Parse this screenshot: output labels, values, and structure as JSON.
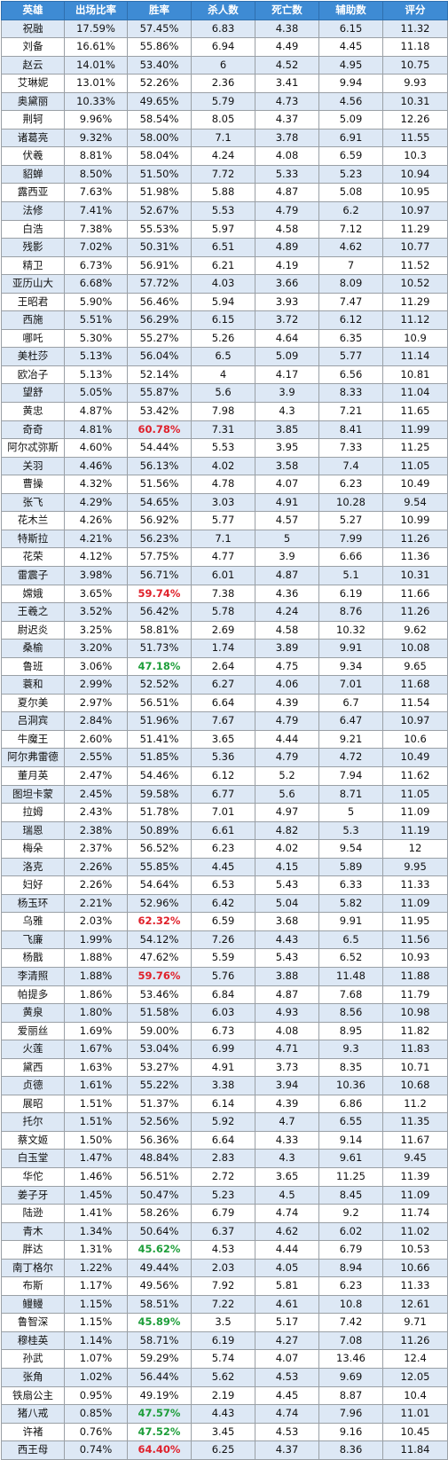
{
  "headers": [
    "英雄",
    "出场比率",
    "胜率",
    "杀人数",
    "死亡数",
    "辅助数",
    "评分"
  ],
  "colors": {
    "header_bg": "#3e8bd4",
    "band": "#dde8f5",
    "high_win": "#e0202a",
    "low_win": "#1e9e3a"
  },
  "rows": [
    {
      "hero": "祝融",
      "pick": "17.59%",
      "win": "57.45%",
      "kills": "6.83",
      "deaths": "4.38",
      "assists": "6.15",
      "score": "11.32",
      "flag": ""
    },
    {
      "hero": "刘备",
      "pick": "16.61%",
      "win": "55.86%",
      "kills": "6.94",
      "deaths": "4.49",
      "assists": "4.45",
      "score": "11.18",
      "flag": ""
    },
    {
      "hero": "赵云",
      "pick": "14.01%",
      "win": "53.40%",
      "kills": "6",
      "deaths": "4.52",
      "assists": "4.95",
      "score": "10.75",
      "flag": ""
    },
    {
      "hero": "艾琳妮",
      "pick": "13.01%",
      "win": "52.26%",
      "kills": "2.36",
      "deaths": "3.41",
      "assists": "9.94",
      "score": "9.93",
      "flag": ""
    },
    {
      "hero": "奥黛丽",
      "pick": "10.33%",
      "win": "49.65%",
      "kills": "5.79",
      "deaths": "4.73",
      "assists": "4.56",
      "score": "10.31",
      "flag": ""
    },
    {
      "hero": "荆轲",
      "pick": "9.96%",
      "win": "58.54%",
      "kills": "8.05",
      "deaths": "4.37",
      "assists": "5.09",
      "score": "12.26",
      "flag": ""
    },
    {
      "hero": "诸葛亮",
      "pick": "9.32%",
      "win": "58.00%",
      "kills": "7.1",
      "deaths": "3.78",
      "assists": "6.91",
      "score": "11.55",
      "flag": ""
    },
    {
      "hero": "伏羲",
      "pick": "8.81%",
      "win": "58.04%",
      "kills": "4.24",
      "deaths": "4.08",
      "assists": "6.59",
      "score": "10.3",
      "flag": ""
    },
    {
      "hero": "貂蝉",
      "pick": "8.50%",
      "win": "51.50%",
      "kills": "7.72",
      "deaths": "5.33",
      "assists": "5.23",
      "score": "10.94",
      "flag": ""
    },
    {
      "hero": "露西亚",
      "pick": "7.63%",
      "win": "51.98%",
      "kills": "5.88",
      "deaths": "4.87",
      "assists": "5.08",
      "score": "10.95",
      "flag": ""
    },
    {
      "hero": "法修",
      "pick": "7.41%",
      "win": "52.67%",
      "kills": "5.53",
      "deaths": "4.79",
      "assists": "6.2",
      "score": "10.97",
      "flag": ""
    },
    {
      "hero": "白浩",
      "pick": "7.38%",
      "win": "55.53%",
      "kills": "5.97",
      "deaths": "4.58",
      "assists": "7.12",
      "score": "11.29",
      "flag": ""
    },
    {
      "hero": "残影",
      "pick": "7.02%",
      "win": "50.31%",
      "kills": "6.51",
      "deaths": "4.89",
      "assists": "4.62",
      "score": "10.77",
      "flag": ""
    },
    {
      "hero": "精卫",
      "pick": "6.73%",
      "win": "56.91%",
      "kills": "6.21",
      "deaths": "4.19",
      "assists": "7",
      "score": "11.52",
      "flag": ""
    },
    {
      "hero": "亚历山大",
      "pick": "6.68%",
      "win": "57.72%",
      "kills": "4.03",
      "deaths": "3.66",
      "assists": "8.09",
      "score": "10.52",
      "flag": ""
    },
    {
      "hero": "王昭君",
      "pick": "5.90%",
      "win": "56.46%",
      "kills": "5.94",
      "deaths": "3.93",
      "assists": "7.47",
      "score": "11.29",
      "flag": ""
    },
    {
      "hero": "西施",
      "pick": "5.51%",
      "win": "56.29%",
      "kills": "6.15",
      "deaths": "3.72",
      "assists": "6.12",
      "score": "11.12",
      "flag": ""
    },
    {
      "hero": "哪吒",
      "pick": "5.30%",
      "win": "55.27%",
      "kills": "5.26",
      "deaths": "4.64",
      "assists": "6.35",
      "score": "10.9",
      "flag": ""
    },
    {
      "hero": "美杜莎",
      "pick": "5.13%",
      "win": "56.04%",
      "kills": "6.5",
      "deaths": "5.09",
      "assists": "5.77",
      "score": "11.14",
      "flag": ""
    },
    {
      "hero": "欧冶子",
      "pick": "5.13%",
      "win": "52.14%",
      "kills": "4",
      "deaths": "4.17",
      "assists": "6.56",
      "score": "10.81",
      "flag": ""
    },
    {
      "hero": "望舒",
      "pick": "5.05%",
      "win": "55.87%",
      "kills": "5.6",
      "deaths": "3.9",
      "assists": "8.33",
      "score": "11.04",
      "flag": ""
    },
    {
      "hero": "黄忠",
      "pick": "4.87%",
      "win": "53.42%",
      "kills": "7.98",
      "deaths": "4.3",
      "assists": "7.21",
      "score": "11.65",
      "flag": ""
    },
    {
      "hero": "奇奇",
      "pick": "4.81%",
      "win": "60.78%",
      "kills": "7.31",
      "deaths": "3.85",
      "assists": "8.41",
      "score": "11.99",
      "flag": "red"
    },
    {
      "hero": "阿尔忒弥斯",
      "pick": "4.60%",
      "win": "54.44%",
      "kills": "5.53",
      "deaths": "3.95",
      "assists": "7.33",
      "score": "11.25",
      "flag": ""
    },
    {
      "hero": "关羽",
      "pick": "4.46%",
      "win": "56.13%",
      "kills": "4.02",
      "deaths": "3.58",
      "assists": "7.4",
      "score": "11.05",
      "flag": ""
    },
    {
      "hero": "曹操",
      "pick": "4.32%",
      "win": "51.56%",
      "kills": "4.78",
      "deaths": "4.07",
      "assists": "6.23",
      "score": "10.49",
      "flag": ""
    },
    {
      "hero": "张飞",
      "pick": "4.29%",
      "win": "54.65%",
      "kills": "3.03",
      "deaths": "4.91",
      "assists": "10.28",
      "score": "9.54",
      "flag": ""
    },
    {
      "hero": "花木兰",
      "pick": "4.26%",
      "win": "56.92%",
      "kills": "5.77",
      "deaths": "4.57",
      "assists": "5.27",
      "score": "10.99",
      "flag": ""
    },
    {
      "hero": "特斯拉",
      "pick": "4.21%",
      "win": "56.23%",
      "kills": "7.1",
      "deaths": "5",
      "assists": "7.99",
      "score": "11.26",
      "flag": ""
    },
    {
      "hero": "花荣",
      "pick": "4.12%",
      "win": "57.75%",
      "kills": "4.77",
      "deaths": "3.9",
      "assists": "6.66",
      "score": "11.36",
      "flag": ""
    },
    {
      "hero": "雷震子",
      "pick": "3.98%",
      "win": "56.71%",
      "kills": "6.01",
      "deaths": "4.87",
      "assists": "5.1",
      "score": "10.31",
      "flag": ""
    },
    {
      "hero": "嫦娥",
      "pick": "3.65%",
      "win": "59.74%",
      "kills": "7.38",
      "deaths": "4.36",
      "assists": "6.19",
      "score": "11.66",
      "flag": "red"
    },
    {
      "hero": "王羲之",
      "pick": "3.52%",
      "win": "56.42%",
      "kills": "5.78",
      "deaths": "4.24",
      "assists": "8.76",
      "score": "11.26",
      "flag": ""
    },
    {
      "hero": "尉迟炎",
      "pick": "3.25%",
      "win": "58.81%",
      "kills": "2.69",
      "deaths": "4.58",
      "assists": "10.32",
      "score": "9.62",
      "flag": ""
    },
    {
      "hero": "桑榆",
      "pick": "3.20%",
      "win": "51.73%",
      "kills": "1.74",
      "deaths": "3.89",
      "assists": "9.91",
      "score": "10.08",
      "flag": ""
    },
    {
      "hero": "鲁班",
      "pick": "3.06%",
      "win": "47.18%",
      "kills": "2.64",
      "deaths": "4.75",
      "assists": "9.34",
      "score": "9.65",
      "flag": "green"
    },
    {
      "hero": "蓑和",
      "pick": "2.99%",
      "win": "52.52%",
      "kills": "6.27",
      "deaths": "4.06",
      "assists": "7.01",
      "score": "11.68",
      "flag": ""
    },
    {
      "hero": "夏尔美",
      "pick": "2.97%",
      "win": "56.51%",
      "kills": "6.64",
      "deaths": "4.39",
      "assists": "6.7",
      "score": "11.54",
      "flag": ""
    },
    {
      "hero": "吕洞宾",
      "pick": "2.84%",
      "win": "51.96%",
      "kills": "7.67",
      "deaths": "4.79",
      "assists": "6.47",
      "score": "10.97",
      "flag": ""
    },
    {
      "hero": "牛魔王",
      "pick": "2.60%",
      "win": "51.41%",
      "kills": "3.65",
      "deaths": "4.44",
      "assists": "9.21",
      "score": "10.6",
      "flag": ""
    },
    {
      "hero": "阿尔弗雷德",
      "pick": "2.55%",
      "win": "51.85%",
      "kills": "5.36",
      "deaths": "4.79",
      "assists": "4.72",
      "score": "10.49",
      "flag": ""
    },
    {
      "hero": "董月英",
      "pick": "2.47%",
      "win": "54.46%",
      "kills": "6.12",
      "deaths": "5.2",
      "assists": "7.94",
      "score": "11.62",
      "flag": ""
    },
    {
      "hero": "图坦卡蒙",
      "pick": "2.45%",
      "win": "59.58%",
      "kills": "6.77",
      "deaths": "5.6",
      "assists": "8.71",
      "score": "11.05",
      "flag": ""
    },
    {
      "hero": "拉姆",
      "pick": "2.43%",
      "win": "51.78%",
      "kills": "7.01",
      "deaths": "4.97",
      "assists": "5",
      "score": "11.09",
      "flag": ""
    },
    {
      "hero": "瑞恩",
      "pick": "2.38%",
      "win": "50.89%",
      "kills": "6.61",
      "deaths": "4.82",
      "assists": "5.3",
      "score": "11.19",
      "flag": ""
    },
    {
      "hero": "梅朵",
      "pick": "2.37%",
      "win": "56.52%",
      "kills": "6.23",
      "deaths": "4.02",
      "assists": "9.54",
      "score": "12",
      "flag": ""
    },
    {
      "hero": "洛克",
      "pick": "2.26%",
      "win": "55.85%",
      "kills": "4.45",
      "deaths": "4.15",
      "assists": "5.89",
      "score": "9.95",
      "flag": ""
    },
    {
      "hero": "妇好",
      "pick": "2.26%",
      "win": "54.64%",
      "kills": "6.53",
      "deaths": "5.43",
      "assists": "6.33",
      "score": "11.33",
      "flag": ""
    },
    {
      "hero": "杨玉环",
      "pick": "2.21%",
      "win": "52.96%",
      "kills": "6.42",
      "deaths": "5.04",
      "assists": "5.82",
      "score": "11.09",
      "flag": ""
    },
    {
      "hero": "乌雅",
      "pick": "2.03%",
      "win": "62.32%",
      "kills": "6.59",
      "deaths": "3.68",
      "assists": "9.91",
      "score": "11.95",
      "flag": "red"
    },
    {
      "hero": "飞廉",
      "pick": "1.99%",
      "win": "54.12%",
      "kills": "7.26",
      "deaths": "4.43",
      "assists": "6.5",
      "score": "11.56",
      "flag": ""
    },
    {
      "hero": "杨戬",
      "pick": "1.88%",
      "win": "47.62%",
      "kills": "5.59",
      "deaths": "5.43",
      "assists": "6.52",
      "score": "10.93",
      "flag": ""
    },
    {
      "hero": "李清照",
      "pick": "1.88%",
      "win": "59.76%",
      "kills": "5.76",
      "deaths": "3.88",
      "assists": "11.48",
      "score": "11.88",
      "flag": "red"
    },
    {
      "hero": "帕提多",
      "pick": "1.86%",
      "win": "53.46%",
      "kills": "6.84",
      "deaths": "4.87",
      "assists": "7.68",
      "score": "11.79",
      "flag": ""
    },
    {
      "hero": "黄泉",
      "pick": "1.80%",
      "win": "51.58%",
      "kills": "6.03",
      "deaths": "4.93",
      "assists": "8.56",
      "score": "10.98",
      "flag": ""
    },
    {
      "hero": "爱丽丝",
      "pick": "1.69%",
      "win": "59.00%",
      "kills": "6.73",
      "deaths": "4.08",
      "assists": "8.95",
      "score": "11.82",
      "flag": ""
    },
    {
      "hero": "火莲",
      "pick": "1.67%",
      "win": "53.04%",
      "kills": "6.99",
      "deaths": "4.71",
      "assists": "9.3",
      "score": "11.83",
      "flag": ""
    },
    {
      "hero": "黛西",
      "pick": "1.63%",
      "win": "53.27%",
      "kills": "4.91",
      "deaths": "3.73",
      "assists": "8.35",
      "score": "10.71",
      "flag": ""
    },
    {
      "hero": "贞德",
      "pick": "1.61%",
      "win": "55.22%",
      "kills": "3.38",
      "deaths": "3.94",
      "assists": "10.36",
      "score": "10.68",
      "flag": ""
    },
    {
      "hero": "展昭",
      "pick": "1.51%",
      "win": "51.37%",
      "kills": "6.14",
      "deaths": "4.39",
      "assists": "6.86",
      "score": "11.2",
      "flag": ""
    },
    {
      "hero": "托尔",
      "pick": "1.51%",
      "win": "52.56%",
      "kills": "5.92",
      "deaths": "4.7",
      "assists": "6.55",
      "score": "11.35",
      "flag": ""
    },
    {
      "hero": "蔡文姬",
      "pick": "1.50%",
      "win": "56.36%",
      "kills": "6.64",
      "deaths": "4.33",
      "assists": "9.14",
      "score": "11.67",
      "flag": ""
    },
    {
      "hero": "白玉堂",
      "pick": "1.47%",
      "win": "48.84%",
      "kills": "2.83",
      "deaths": "4.3",
      "assists": "9.61",
      "score": "9.45",
      "flag": ""
    },
    {
      "hero": "华佗",
      "pick": "1.46%",
      "win": "56.51%",
      "kills": "2.72",
      "deaths": "3.65",
      "assists": "11.25",
      "score": "11.39",
      "flag": ""
    },
    {
      "hero": "姜子牙",
      "pick": "1.45%",
      "win": "50.47%",
      "kills": "5.23",
      "deaths": "4.5",
      "assists": "8.45",
      "score": "11.09",
      "flag": ""
    },
    {
      "hero": "陆逊",
      "pick": "1.41%",
      "win": "58.26%",
      "kills": "6.79",
      "deaths": "4.74",
      "assists": "9.2",
      "score": "11.74",
      "flag": ""
    },
    {
      "hero": "青木",
      "pick": "1.34%",
      "win": "50.64%",
      "kills": "6.37",
      "deaths": "4.62",
      "assists": "6.02",
      "score": "11.02",
      "flag": ""
    },
    {
      "hero": "胖达",
      "pick": "1.31%",
      "win": "45.62%",
      "kills": "4.53",
      "deaths": "4.44",
      "assists": "6.79",
      "score": "10.53",
      "flag": "green"
    },
    {
      "hero": "南丁格尔",
      "pick": "1.22%",
      "win": "49.44%",
      "kills": "2.03",
      "deaths": "4.05",
      "assists": "8.94",
      "score": "10.66",
      "flag": ""
    },
    {
      "hero": "布斯",
      "pick": "1.17%",
      "win": "49.56%",
      "kills": "7.92",
      "deaths": "5.81",
      "assists": "6.23",
      "score": "11.33",
      "flag": ""
    },
    {
      "hero": "鳗鳗",
      "pick": "1.15%",
      "win": "58.51%",
      "kills": "7.22",
      "deaths": "4.61",
      "assists": "10.8",
      "score": "12.61",
      "flag": ""
    },
    {
      "hero": "鲁智深",
      "pick": "1.15%",
      "win": "45.89%",
      "kills": "3.5",
      "deaths": "5.17",
      "assists": "7.42",
      "score": "9.71",
      "flag": "green"
    },
    {
      "hero": "穆桂英",
      "pick": "1.14%",
      "win": "58.71%",
      "kills": "6.19",
      "deaths": "4.27",
      "assists": "7.08",
      "score": "11.26",
      "flag": ""
    },
    {
      "hero": "孙武",
      "pick": "1.07%",
      "win": "59.29%",
      "kills": "5.74",
      "deaths": "4.07",
      "assists": "13.46",
      "score": "12.4",
      "flag": ""
    },
    {
      "hero": "张角",
      "pick": "1.02%",
      "win": "56.44%",
      "kills": "5.62",
      "deaths": "4.53",
      "assists": "9.69",
      "score": "12.05",
      "flag": ""
    },
    {
      "hero": "铁扇公主",
      "pick": "0.95%",
      "win": "49.19%",
      "kills": "2.19",
      "deaths": "4.45",
      "assists": "8.87",
      "score": "10.4",
      "flag": ""
    },
    {
      "hero": "猪八戒",
      "pick": "0.85%",
      "win": "47.57%",
      "kills": "4.43",
      "deaths": "4.74",
      "assists": "7.96",
      "score": "11.01",
      "flag": "green"
    },
    {
      "hero": "许褚",
      "pick": "0.76%",
      "win": "47.52%",
      "kills": "3.45",
      "deaths": "4.53",
      "assists": "9.16",
      "score": "10.45",
      "flag": "green"
    },
    {
      "hero": "西王母",
      "pick": "0.74%",
      "win": "64.40%",
      "kills": "6.25",
      "deaths": "4.37",
      "assists": "8.36",
      "score": "11.84",
      "flag": "red"
    }
  ]
}
